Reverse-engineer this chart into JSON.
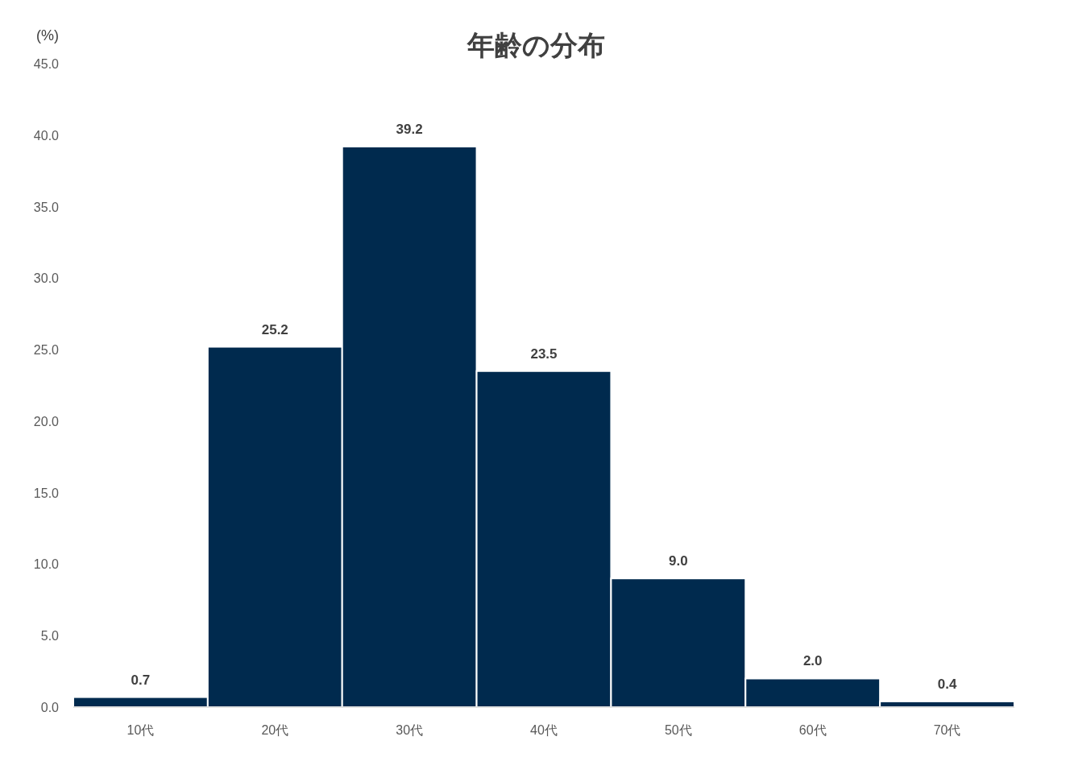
{
  "chart_data": {
    "type": "bar",
    "title": "年齢の分布",
    "ylabel": "(%)",
    "categories": [
      "10代",
      "20代",
      "30代",
      "40代",
      "50代",
      "60代",
      "70代"
    ],
    "values": [
      0.7,
      25.2,
      39.2,
      23.5,
      9.0,
      2.0,
      0.4
    ],
    "color": "#002a4e",
    "ylim": [
      0,
      45
    ],
    "yticks": [
      {
        "value": 0,
        "label": "0.0"
      },
      {
        "value": 5,
        "label": "5.0"
      },
      {
        "value": 10,
        "label": "10.0"
      },
      {
        "value": 15,
        "label": "15.0"
      },
      {
        "value": 20,
        "label": "20.0"
      },
      {
        "value": 25,
        "label": "25.0"
      },
      {
        "value": 30,
        "label": "30.0"
      },
      {
        "value": 35,
        "label": "35.0"
      },
      {
        "value": 40,
        "label": "40.0"
      },
      {
        "value": 45,
        "label": "45.0"
      }
    ],
    "value_labels": [
      "0.7",
      "25.2",
      "39.2",
      "23.5",
      "9.0",
      "2.0",
      "0.4"
    ],
    "grid": false
  }
}
